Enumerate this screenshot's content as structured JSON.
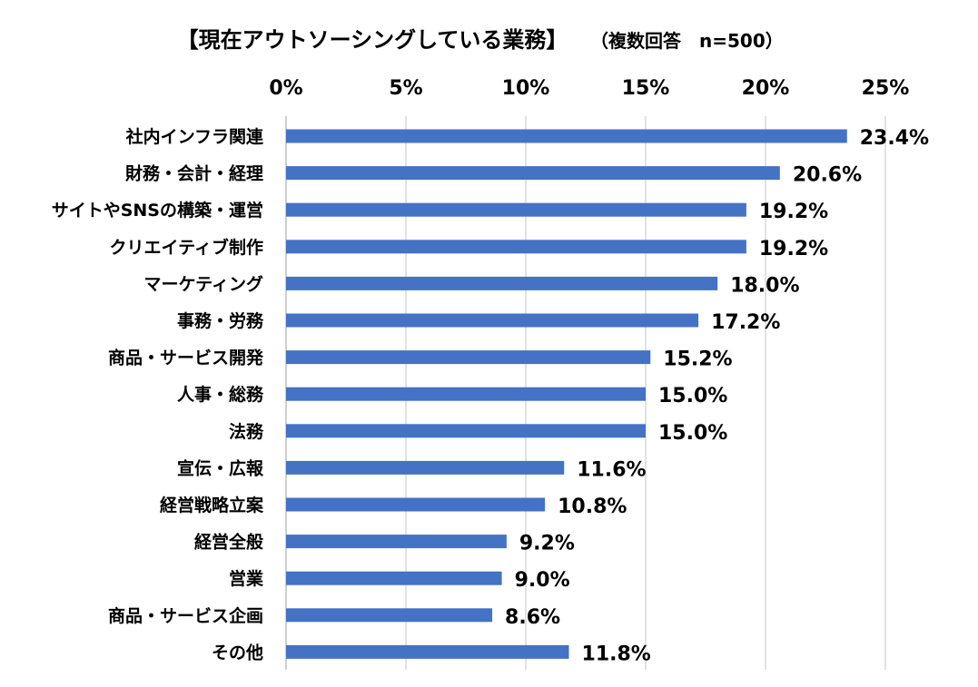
{
  "chart_data": {
    "type": "bar",
    "orientation": "horizontal",
    "title": "【現在アウトソーシングしている業務】",
    "subtitle": "（複数回答　n=500）",
    "categories": [
      "社内インフラ関連",
      "財務・会計・経理",
      "サイトやSNSの構築・運営",
      "クリエイティブ制作",
      "マーケティング",
      "事務・労務",
      "商品・サービス開発",
      "人事・総務",
      "法務",
      "宣伝・広報",
      "経営戦略立案",
      "経営全般",
      "営業",
      "商品・サービス企画",
      "その他"
    ],
    "values": [
      23.4,
      20.6,
      19.2,
      19.2,
      18.0,
      17.2,
      15.2,
      15.0,
      15.0,
      11.6,
      10.8,
      9.2,
      9.0,
      8.6,
      11.8
    ],
    "data_labels": [
      "23.4%",
      "20.6%",
      "19.2%",
      "19.2%",
      "18.0%",
      "17.2%",
      "15.2%",
      "15.0%",
      "15.0%",
      "11.6%",
      "10.8%",
      "9.2%",
      "9.0%",
      "8.6%",
      "11.8%"
    ],
    "x_ticks": [
      0,
      5,
      10,
      15,
      20,
      25
    ],
    "x_tick_labels": [
      "0%",
      "5%",
      "10%",
      "15%",
      "20%",
      "25%"
    ],
    "xlim": [
      0,
      25
    ],
    "xlabel": "",
    "ylabel": "",
    "grid": true,
    "x_axis_position": "top",
    "bar_color": "#4472c4"
  }
}
